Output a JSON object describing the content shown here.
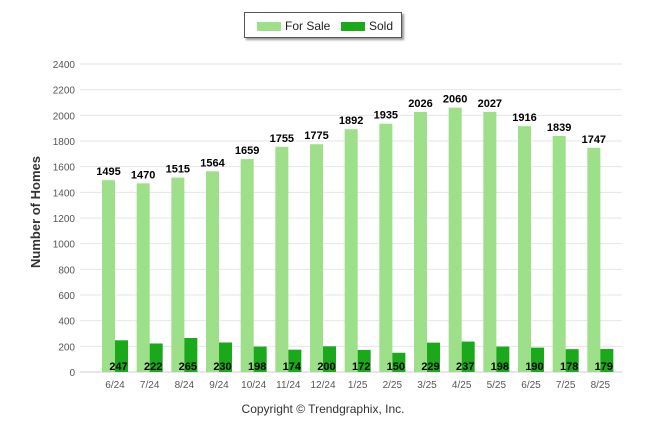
{
  "legend": {
    "for_sale": "For Sale",
    "sold": "Sold"
  },
  "copyright": "Copyright © Trendgraphix, Inc.",
  "colors": {
    "for_sale": "#9ee08a",
    "sold": "#1aa91a",
    "grid": "#e6e6e6",
    "axis_text": "#555555"
  },
  "chart_data": {
    "type": "bar",
    "categories": [
      "6/24",
      "7/24",
      "8/24",
      "9/24",
      "10/24",
      "11/24",
      "12/24",
      "1/25",
      "2/25",
      "3/25",
      "4/25",
      "5/25",
      "6/25",
      "7/25",
      "8/25"
    ],
    "series": [
      {
        "name": "For Sale",
        "values": [
          1495,
          1470,
          1515,
          1564,
          1659,
          1755,
          1775,
          1892,
          1935,
          2026,
          2060,
          2027,
          1916,
          1839,
          1747
        ]
      },
      {
        "name": "Sold",
        "values": [
          247,
          222,
          265,
          230,
          198,
          174,
          200,
          172,
          150,
          229,
          237,
          198,
          190,
          178,
          179
        ]
      }
    ],
    "ylabel": "Number of Homes",
    "ylim": [
      0,
      2400
    ],
    "yticks": [
      0,
      200,
      400,
      600,
      800,
      1000,
      1200,
      1400,
      1600,
      1800,
      2000,
      2200,
      2400
    ],
    "grid": true,
    "legend_position": "top-center"
  }
}
